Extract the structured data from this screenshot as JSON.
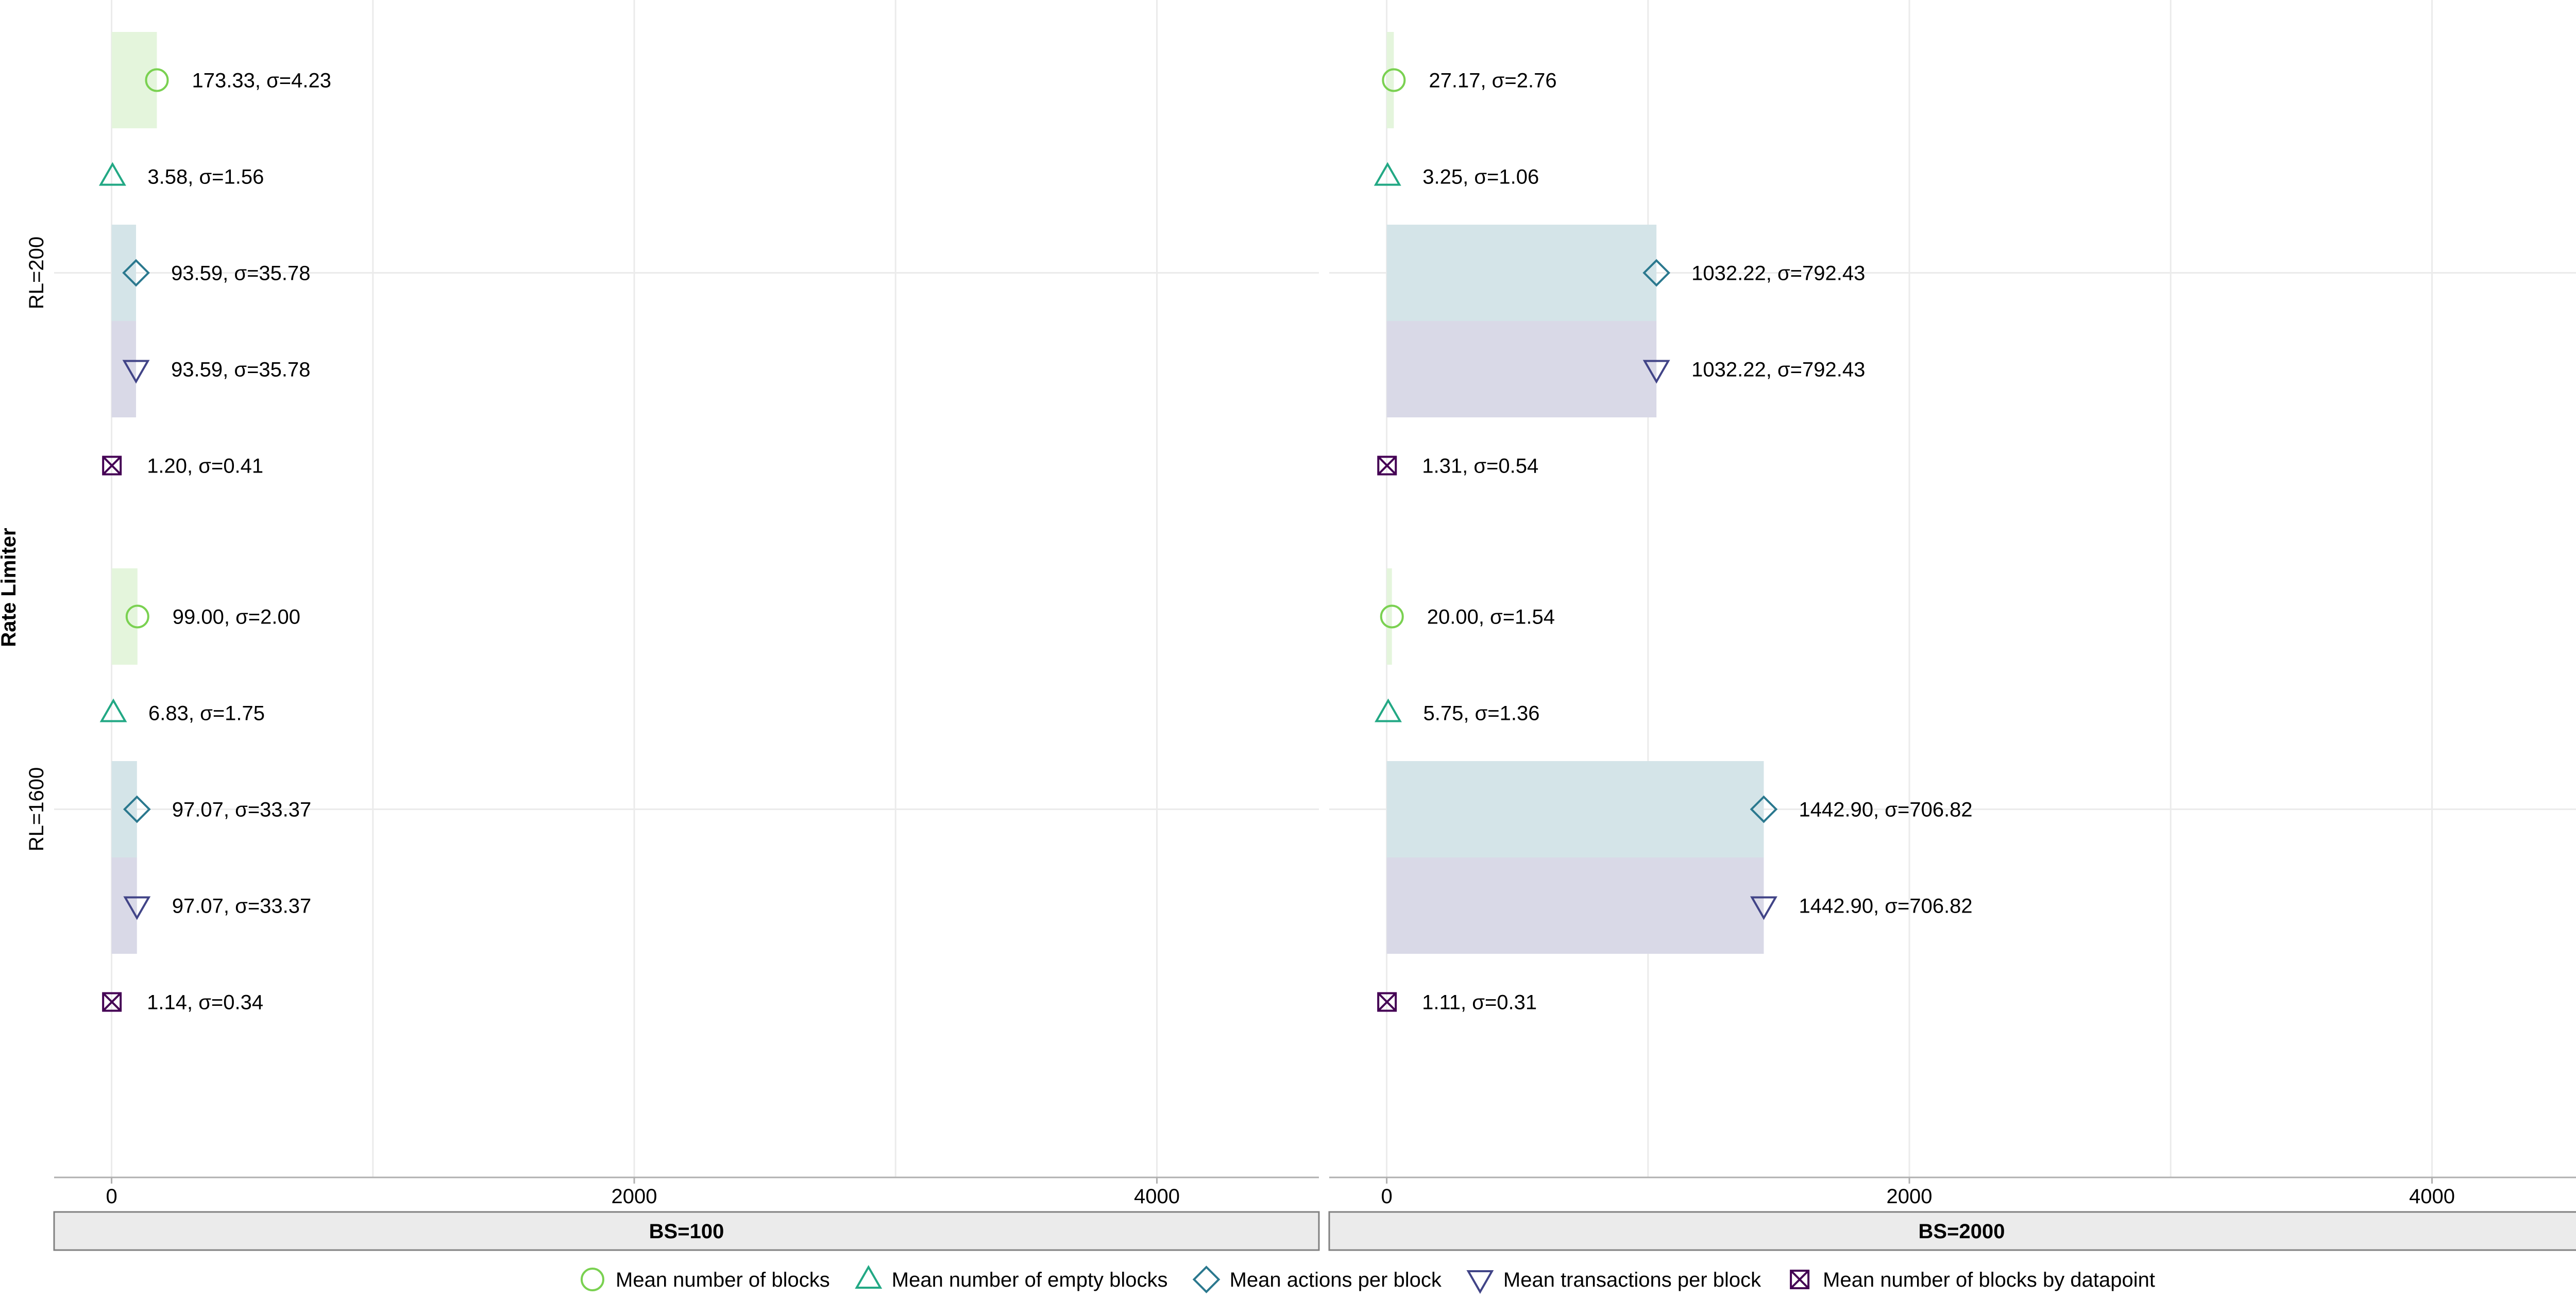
{
  "chart_data": {
    "type": "bar",
    "orientation": "horizontal",
    "ylabel": "Rate Limiter",
    "xlim": [
      -220,
      4620
    ],
    "x_ticks": [
      0,
      2000,
      4000
    ],
    "panels": [
      "BS=100",
      "BS=2000"
    ],
    "groups": [
      "RL=200",
      "RL=1600"
    ],
    "series": [
      {
        "name": "Mean number of blocks",
        "marker": "circle",
        "color": "#7AD151",
        "fill": "#e4f5dc"
      },
      {
        "name": "Mean number of empty blocks",
        "marker": "triangle-up",
        "color": "#22A884",
        "fill": null
      },
      {
        "name": "Mean actions per block",
        "marker": "diamond",
        "color": "#2A788E",
        "fill": "#d4e4e8"
      },
      {
        "name": "Mean transactions per block",
        "marker": "triangle-down",
        "color": "#414487",
        "fill": "#d9d9e7"
      },
      {
        "name": "Mean number of blocks by datapoint",
        "marker": "square-x",
        "color": "#440154",
        "fill": null
      }
    ],
    "values": {
      "BS=100": {
        "RL=200": [
          {
            "mean": 173.33,
            "label": "173.33, σ=4.23"
          },
          {
            "mean": 3.58,
            "label": "3.58, σ=1.56"
          },
          {
            "mean": 93.59,
            "label": "93.59, σ=35.78"
          },
          {
            "mean": 93.59,
            "label": "93.59, σ=35.78"
          },
          {
            "mean": 1.2,
            "label": "1.20, σ=0.41"
          }
        ],
        "RL=1600": [
          {
            "mean": 99.0,
            "label": "99.00, σ=2.00"
          },
          {
            "mean": 6.83,
            "label": "6.83, σ=1.75"
          },
          {
            "mean": 97.07,
            "label": "97.07, σ=33.37"
          },
          {
            "mean": 97.07,
            "label": "97.07, σ=33.37"
          },
          {
            "mean": 1.14,
            "label": "1.14, σ=0.34"
          }
        ]
      },
      "BS=2000": {
        "RL=200": [
          {
            "mean": 27.17,
            "label": "27.17, σ=2.76"
          },
          {
            "mean": 3.25,
            "label": "3.25, σ=1.06"
          },
          {
            "mean": 1032.22,
            "label": "1032.22, σ=792.43"
          },
          {
            "mean": 1032.22,
            "label": "1032.22, σ=792.43"
          },
          {
            "mean": 1.31,
            "label": "1.31, σ=0.54"
          }
        ],
        "RL=1600": [
          {
            "mean": 20.0,
            "label": "20.00, σ=1.54"
          },
          {
            "mean": 5.75,
            "label": "5.75, σ=1.36"
          },
          {
            "mean": 1442.9,
            "label": "1442.90, σ=706.82"
          },
          {
            "mean": 1442.9,
            "label": "1442.90, σ=706.82"
          },
          {
            "mean": 1.11,
            "label": "1.11, σ=0.31"
          }
        ]
      }
    },
    "legend_position": "bottom"
  }
}
